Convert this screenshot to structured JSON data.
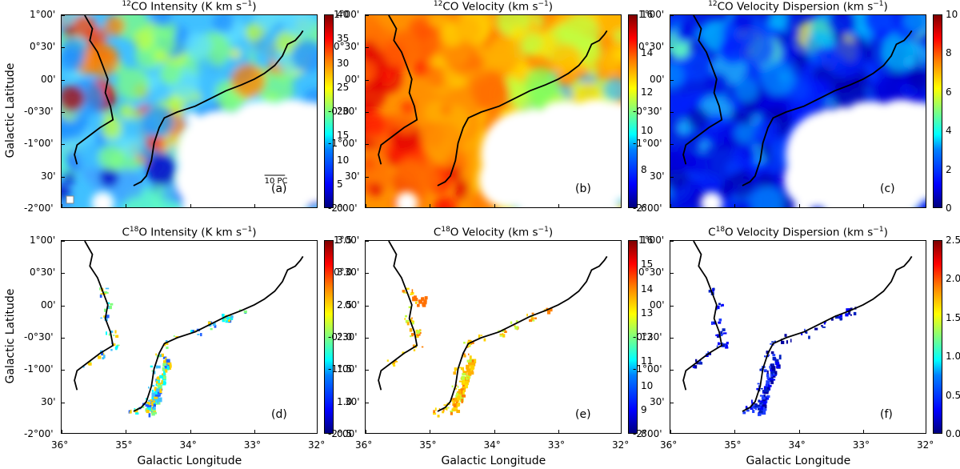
{
  "figure": {
    "xlabel": "Galactic Longitude",
    "ylabel": "Galactic Latitude",
    "xticks": [
      "36°",
      "35°",
      "34°",
      "33°",
      "32°"
    ],
    "yticks": [
      "1°00'",
      "0°30'",
      "00'",
      "-0°30'",
      "-1°00'",
      "30'",
      "-2°00'"
    ],
    "scale_bar_label": "10 PC"
  },
  "panels": [
    {
      "id": "a",
      "iso": "12",
      "title_rest": "CO Intensity (K km s",
      "letter": "(a)",
      "cbar_ticks": [
        "40",
        "35",
        "30",
        "25",
        "20",
        "15",
        "10",
        "5",
        "0"
      ]
    },
    {
      "id": "b",
      "iso": "12",
      "title_rest": "CO Velocity (km s",
      "letter": "(b)",
      "cbar_ticks": [
        "16",
        "14",
        "12",
        "10",
        "8",
        "6"
      ]
    },
    {
      "id": "c",
      "iso": "12",
      "title_rest": "CO Velocity Dispersion (km s",
      "letter": "(c)",
      "cbar_ticks": [
        "10",
        "8",
        "6",
        "4",
        "2",
        "0"
      ]
    },
    {
      "id": "d",
      "iso": "18",
      "title_rest": "O Intensity (K km s",
      "letter": "(d)",
      "cbar_ticks": [
        "3.5",
        "3.0",
        "2.5",
        "2.0",
        "1.5",
        "1.0",
        "0.5"
      ]
    },
    {
      "id": "e",
      "iso": "18",
      "title_rest": "O Velocity (km s",
      "letter": "(e)",
      "cbar_ticks": [
        "16",
        "15",
        "14",
        "13",
        "12",
        "11",
        "10",
        "9",
        "8"
      ]
    },
    {
      "id": "f",
      "iso": "18",
      "title_rest": "O Velocity Dispersion (km s",
      "letter": "(f)",
      "cbar_ticks": [
        "2.5",
        "2.0",
        "1.5",
        "1.0",
        "0.5",
        "0.0"
      ]
    }
  ],
  "title_suffix": "−1",
  "title_close": ")",
  "c_prefix": "C"
}
